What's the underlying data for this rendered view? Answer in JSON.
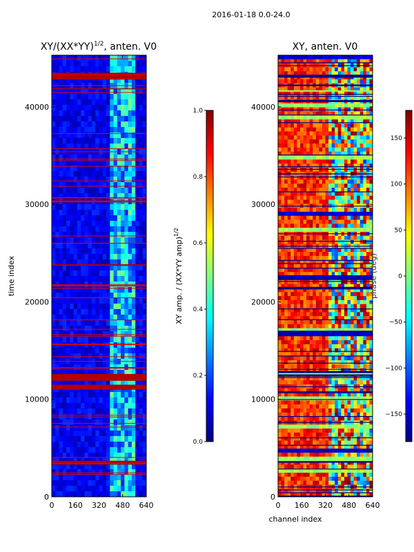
{
  "figure": {
    "suptitle": "2016-01-18 0.0-24.0"
  },
  "chart_data": [
    {
      "type": "heatmap",
      "title": "XY/(XX*YY)^{1/2}, anten. V0",
      "title_parts": {
        "base": "XY/(XX*YY)",
        "sup": "1/2",
        "tail": ", anten. V0"
      },
      "xlabel": "",
      "ylabel": "time index",
      "x_range": [
        0,
        640
      ],
      "y_range": [
        0,
        45300
      ],
      "x_ticks": [
        "0",
        "160",
        "320",
        "480",
        "640"
      ],
      "y_ticks": [
        "0",
        "10000",
        "20000",
        "30000",
        "40000"
      ],
      "colorbar": {
        "label": "XY amp. / (XX*YY amp)^{1/2}",
        "label_parts": {
          "base": "XY amp. / (XX*YY amp)",
          "sup": "1/2"
        },
        "range": [
          0.0,
          1.0
        ],
        "ticks": [
          "0.0",
          "0.2",
          "0.4",
          "0.6",
          "0.8",
          "1.0"
        ],
        "colormap": "jet"
      },
      "saturated_time_bands": [
        [
          3300,
          3700
        ],
        [
          11000,
          11500
        ],
        [
          11900,
          12600
        ],
        [
          42800,
          43500
        ],
        [
          30200,
          30400
        ],
        [
          23700,
          23850
        ],
        [
          41800,
          41900
        ],
        [
          13200,
          13300
        ]
      ],
      "high_amplitude_channel_band": [
        400,
        560
      ]
    },
    {
      "type": "heatmap",
      "title": "XY, anten. V0",
      "xlabel": "channel index",
      "ylabel": "",
      "x_range": [
        0,
        640
      ],
      "y_range": [
        0,
        45300
      ],
      "x_ticks": [
        "0",
        "160",
        "320",
        "480",
        "640"
      ],
      "y_ticks": [
        "0",
        "10000",
        "20000",
        "30000",
        "40000"
      ],
      "colorbar": {
        "label": "phase (deg)",
        "range": [
          -180,
          180
        ],
        "ticks": [
          "−150",
          "−100",
          "−50",
          "0",
          "50",
          "100",
          "150"
        ],
        "tick_values": [
          -150,
          -100,
          -50,
          0,
          50,
          100,
          150
        ],
        "colormap": "jet"
      },
      "dominant_phase_deg": 120,
      "gap_time_bands": [
        [
          3500,
          3700
        ],
        [
          12500,
          12900
        ],
        [
          40500,
          40700
        ],
        [
          43000,
          43300
        ]
      ]
    }
  ],
  "colors": {
    "jet_dark_blue": "#00007f",
    "jet_blue": "#0000ff",
    "jet_cyan": "#00ffff",
    "jet_yellow": "#ffff00",
    "jet_red": "#ff0000",
    "jet_dark_red": "#7f0000",
    "axis": "#000000"
  }
}
